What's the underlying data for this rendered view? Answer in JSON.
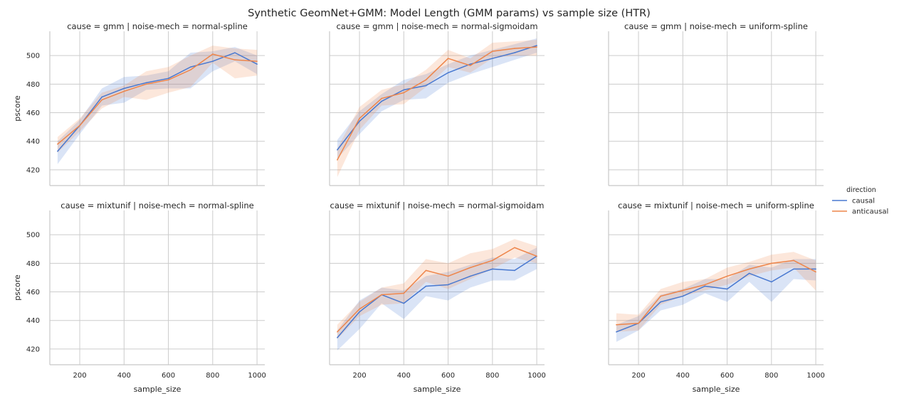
{
  "figure": {
    "title": "Synthetic GeomNet+GMM: Model Length (GMM params) vs sample size (HTR)"
  },
  "legend": {
    "title": "direction",
    "entries": [
      {
        "label": "causal",
        "color": "#4878d0"
      },
      {
        "label": "anticausal",
        "color": "#ee854a"
      }
    ]
  },
  "chart_data": {
    "type": "line",
    "xlabel": "sample_size",
    "ylabel": "pscore",
    "xlim": [
      65,
      1035
    ],
    "ylim": [
      409,
      517
    ],
    "xticks": [
      200,
      400,
      600,
      800,
      1000
    ],
    "yticks": [
      420,
      440,
      460,
      480,
      500
    ],
    "grid": true,
    "legend_position": "right",
    "x": [
      100,
      200,
      300,
      400,
      500,
      600,
      700,
      800,
      900,
      1000
    ],
    "panels": [
      {
        "title": "cause = gmm | noise-mech = normal-spline",
        "series": [
          {
            "name": "causal",
            "values": [
              433,
              451,
              471,
              477,
              481,
              484,
              492,
              496,
              502,
              494
            ],
            "lower": [
              424,
              445,
              465,
              467,
              476,
              477,
              477,
              489,
              496,
              487
            ],
            "upper": [
              440,
              455,
              477,
              485,
              486,
              489,
              502,
              503,
              506,
              500
            ]
          },
          {
            "name": "anticausal",
            "values": [
              438,
              451,
              469,
              475,
              480,
              483,
              490,
              501,
              497,
              496
            ],
            "lower": [
              432,
              447,
              463,
              471,
              469,
              474,
              478,
              495,
              484,
              486
            ],
            "upper": [
              443,
              456,
              474,
              479,
              489,
              492,
              500,
              507,
              505,
              504
            ]
          }
        ]
      },
      {
        "title": "cause = gmm | noise-mech = normal-sigmoidam",
        "series": [
          {
            "name": "causal",
            "values": [
              434,
              454,
              468,
              476,
              479,
              488,
              494,
              498,
              502,
              507
            ],
            "lower": [
              428,
              445,
              461,
              469,
              470,
              481,
              487,
              492,
              497,
              502
            ],
            "upper": [
              441,
              461,
              473,
              483,
              487,
              494,
              500,
              504,
              508,
              512
            ]
          },
          {
            "name": "anticausal",
            "values": [
              427,
              456,
              470,
              474,
              483,
              498,
              493,
              503,
              505,
              506
            ],
            "lower": [
              415,
              448,
              465,
              466,
              478,
              492,
              488,
              498,
              500,
              500
            ],
            "upper": [
              435,
              464,
              476,
              480,
              490,
              504,
              498,
              509,
              510,
              511
            ]
          }
        ]
      },
      {
        "title": "cause = gmm | noise-mech = uniform-spline",
        "series": []
      },
      {
        "title": "cause = mixtunif | noise-mech = normal-spline",
        "series": []
      },
      {
        "title": "cause = mixtunif | noise-mech = normal-sigmoidam",
        "series": [
          {
            "name": "causal",
            "values": [
              428,
              446,
              458,
              452,
              464,
              465,
              471,
              476,
              475,
              485
            ],
            "lower": [
              419,
              434,
              452,
              441,
              457,
              454,
              463,
              468,
              468,
              476
            ],
            "upper": [
              433,
              454,
              463,
              461,
              471,
              474,
              479,
              484,
              483,
              491
            ]
          },
          {
            "name": "anticausal",
            "values": [
              432,
              448,
              458,
              459,
              475,
              471,
              477,
              482,
              491,
              485
            ],
            "lower": [
              427,
              443,
              451,
              452,
              467,
              462,
              469,
              476,
              484,
              480
            ],
            "upper": [
              437,
              453,
              463,
              466,
              483,
              480,
              487,
              490,
              497,
              492
            ]
          }
        ]
      },
      {
        "title": "cause = mixtunif | noise-mech = uniform-spline",
        "series": [
          {
            "name": "causal",
            "values": [
              432,
              438,
              453,
              457,
              464,
              462,
              473,
              467,
              476,
              476
            ],
            "lower": [
              425,
              433,
              447,
              451,
              459,
              453,
              467,
              453,
              469,
              468
            ],
            "upper": [
              437,
              443,
              458,
              462,
              469,
              469,
              479,
              477,
              483,
              483
            ]
          },
          {
            "name": "anticausal",
            "values": [
              437,
              438,
              457,
              461,
              465,
              471,
              476,
              480,
              482,
              474
            ],
            "lower": [
              432,
              433,
              451,
              457,
              461,
              465,
              471,
              475,
              477,
              461
            ],
            "upper": [
              445,
              444,
              462,
              467,
              469,
              477,
              481,
              486,
              488,
              482
            ]
          }
        ]
      }
    ]
  }
}
